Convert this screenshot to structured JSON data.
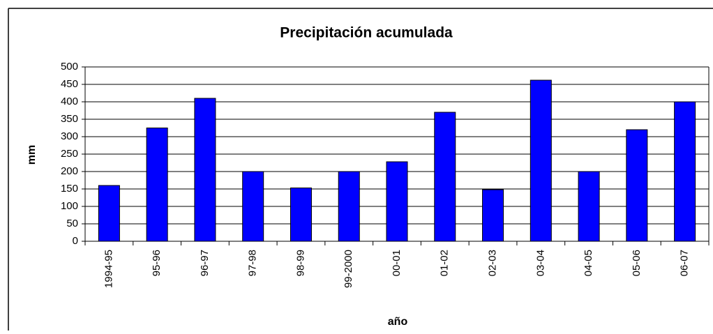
{
  "chart_data": {
    "type": "bar",
    "title": "Precipitación acumulada",
    "y_label": "mm",
    "x_label": "año",
    "categories": [
      "1994-95",
      "95-96",
      "96-97",
      "97-98",
      "98-99",
      "99-2000",
      "00-01",
      "01-02",
      "02-03",
      "03-04",
      "04-05",
      "05-06",
      "06-07"
    ],
    "values": [
      160,
      325,
      410,
      200,
      153,
      200,
      228,
      370,
      148,
      462,
      200,
      320,
      400
    ],
    "color": "#0000ff",
    "ylim": [
      0,
      500
    ],
    "yticks": [
      0,
      50,
      100,
      150,
      200,
      250,
      300,
      350,
      400,
      450,
      500
    ],
    "grid": true
  }
}
